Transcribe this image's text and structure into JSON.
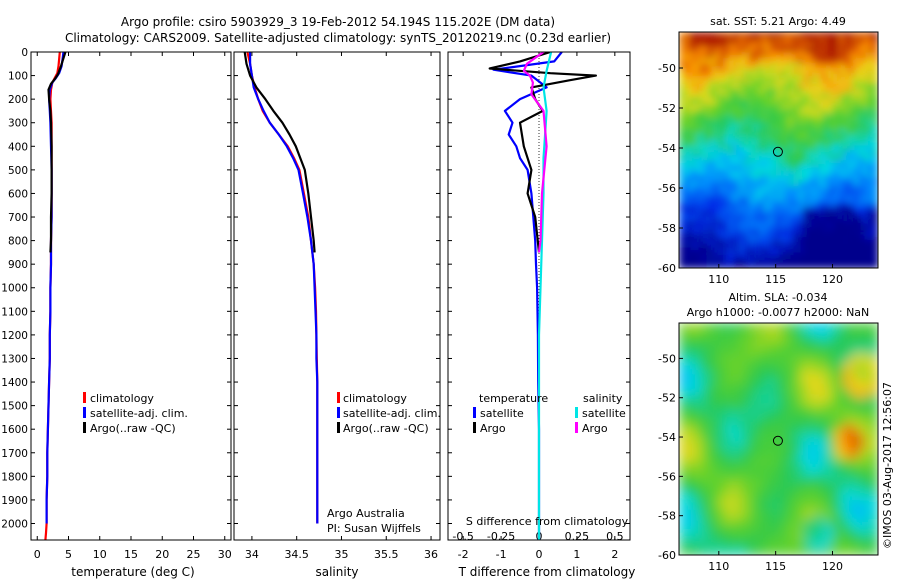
{
  "header": {
    "line1": "Argo profile: csiro 5903929_3 19-Feb-2012 54.194S 115.202E (DM data)",
    "line2": "Climatology: CARS2009. Satellite-adjusted climatology: synTS_20120219.nc (0.23d earlier)"
  },
  "credits": {
    "org": "Argo Australia",
    "pi": "PI: Susan Wijffels",
    "stamp": "©IMOS 03-Aug-2017 12:56:07"
  },
  "colors": {
    "climatology": "#ff0000",
    "satellite": "#0000ff",
    "argo": "#000000",
    "sal_satellite": "#00e5e5",
    "sal_argo": "#ff00ff"
  },
  "legend_profiles": [
    "climatology",
    "satellite-adj. clim.",
    "Argo(..raw -QC)"
  ],
  "legend_diff": {
    "temp_header": "temperature",
    "sal_header": "salinity",
    "temp_items": [
      "satellite",
      "Argo"
    ],
    "sal_items": [
      "satellite",
      "Argo"
    ]
  },
  "chart_data": [
    {
      "type": "line",
      "name": "temperature_profile",
      "xlabel": "temperature (deg C)",
      "xlim": [
        -1,
        31
      ],
      "ylim": [
        2070,
        0
      ],
      "xticks": [
        "0",
        "5",
        "10",
        "15",
        "20",
        "25",
        "30"
      ],
      "yticks": [
        "0",
        "100",
        "200",
        "300",
        "400",
        "500",
        "600",
        "700",
        "800",
        "900",
        "1000",
        "1100",
        "1200",
        "1300",
        "1400",
        "1500",
        "1600",
        "1700",
        "1800",
        "1900",
        "2000"
      ],
      "series": [
        {
          "name": "climatology",
          "color": "#ff0000",
          "x": [
            3.6,
            3.4,
            3.2,
            2.8,
            2.4,
            2.2,
            2.1,
            2.2,
            2.3,
            2.3,
            2.3,
            2.3,
            2.3,
            2.2,
            2.2,
            2.1,
            2.1,
            2.0,
            2.0,
            1.9,
            1.8,
            1.7,
            1.6,
            1.6,
            1.5,
            1.5,
            1.4,
            1.3
          ],
          "y": [
            0,
            60,
            90,
            110,
            130,
            160,
            200,
            250,
            300,
            400,
            500,
            600,
            700,
            800,
            900,
            1000,
            1100,
            1200,
            1300,
            1400,
            1500,
            1600,
            1700,
            1800,
            1900,
            2000,
            2040,
            2070
          ]
        },
        {
          "name": "satellite-adj. clim.",
          "color": "#0000ff",
          "x": [
            4.2,
            3.9,
            3.5,
            3.0,
            2.4,
            2.0,
            1.9,
            2.0,
            2.1,
            2.2,
            2.3,
            2.3,
            2.3,
            2.2,
            2.2,
            2.1,
            2.1,
            2.0,
            2.0,
            1.9,
            1.8,
            1.7,
            1.6,
            1.6,
            1.5,
            1.5
          ],
          "y": [
            0,
            60,
            90,
            110,
            130,
            160,
            200,
            250,
            300,
            400,
            500,
            600,
            700,
            800,
            900,
            1000,
            1100,
            1200,
            1300,
            1400,
            1500,
            1600,
            1700,
            1800,
            1900,
            2000
          ]
        },
        {
          "name": "Argo(..raw -QC)",
          "color": "#000000",
          "x": [
            4.5,
            3.8,
            3.3,
            2.8,
            2.2,
            1.8,
            1.9,
            2.1,
            2.2,
            2.3,
            2.3,
            2.3,
            2.2,
            2.2,
            2.1
          ],
          "y": [
            0,
            60,
            95,
            115,
            135,
            160,
            200,
            250,
            300,
            400,
            500,
            600,
            700,
            800,
            850
          ]
        }
      ]
    },
    {
      "type": "line",
      "name": "salinity_profile",
      "xlabel": "salinity",
      "xlim": [
        33.8,
        36.1
      ],
      "ylim": [
        2070,
        0
      ],
      "xticks": [
        "34",
        "34.5",
        "35",
        "35.5",
        "36"
      ],
      "series": [
        {
          "name": "climatology",
          "color": "#ff0000",
          "x": [
            33.95,
            33.98,
            34.0,
            34.03,
            34.07,
            34.12,
            34.2,
            34.3,
            34.4,
            34.47,
            34.53,
            34.58,
            34.63,
            34.66,
            34.69,
            34.705,
            34.715,
            34.72,
            34.725,
            34.73,
            34.73,
            34.73,
            34.73,
            34.73,
            34.73,
            34.73
          ],
          "y": [
            0,
            50,
            100,
            150,
            200,
            250,
            300,
            350,
            400,
            450,
            500,
            600,
            700,
            800,
            900,
            1000,
            1100,
            1200,
            1300,
            1400,
            1500,
            1600,
            1700,
            1800,
            1900,
            2000
          ]
        },
        {
          "name": "satellite-adj. clim.",
          "color": "#0000ff",
          "x": [
            33.98,
            33.98,
            34.0,
            34.02,
            34.07,
            34.13,
            34.2,
            34.3,
            34.39,
            34.46,
            34.52,
            34.57,
            34.62,
            34.66,
            34.69,
            34.7,
            34.71,
            34.72,
            34.72,
            34.73,
            34.73,
            34.73,
            34.73,
            34.73,
            34.73,
            34.73
          ],
          "y": [
            0,
            50,
            100,
            150,
            200,
            250,
            300,
            350,
            400,
            450,
            500,
            600,
            700,
            800,
            900,
            1000,
            1100,
            1200,
            1300,
            1400,
            1500,
            1600,
            1700,
            1800,
            1900,
            2000
          ]
        },
        {
          "name": "Argo(..raw -QC)",
          "color": "#000000",
          "x": [
            33.92,
            33.94,
            33.98,
            34.05,
            34.15,
            34.24,
            34.34,
            34.42,
            34.49,
            34.54,
            34.59,
            34.63,
            34.66,
            34.69,
            34.7
          ],
          "y": [
            0,
            50,
            100,
            150,
            200,
            250,
            300,
            350,
            400,
            450,
            500,
            600,
            700,
            800,
            850
          ]
        }
      ]
    },
    {
      "type": "line",
      "name": "difference_from_climatology",
      "xlabel": "T difference from climatology",
      "x2label": "S difference from climatology",
      "xlim": [
        -2.4,
        2.4
      ],
      "ylim": [
        2070,
        0
      ],
      "xticks": [
        "-2",
        "-1",
        "0",
        "1",
        "2"
      ],
      "x2ticks": [
        "-0.5",
        "-0.25",
        "0",
        "0.25",
        "0.5"
      ],
      "series": [
        {
          "name": "temperature satellite",
          "color": "#0000ff",
          "x": [
            0.6,
            0.4,
            -1.2,
            -0.2,
            0.2,
            -0.5,
            -0.9,
            -0.7,
            -0.8,
            -0.6,
            -0.5,
            -0.3,
            -0.2,
            -0.15,
            -0.1,
            -0.08,
            -0.05,
            -0.03,
            -0.02,
            0.0,
            0.0,
            0.0,
            0.0
          ],
          "y": [
            0,
            40,
            75,
            100,
            150,
            200,
            250,
            300,
            350,
            400,
            450,
            500,
            600,
            700,
            800,
            900,
            1000,
            1200,
            1400,
            1600,
            1800,
            2000,
            2070
          ]
        },
        {
          "name": "temperature Argo",
          "color": "#000000",
          "x": [
            0.3,
            -0.5,
            -1.3,
            0.3,
            1.5,
            0.8,
            -0.2,
            -0.1,
            0.1,
            -0.5,
            -0.4,
            -0.2,
            -0.3,
            -0.1,
            0.0
          ],
          "y": [
            0,
            40,
            70,
            90,
            100,
            120,
            150,
            200,
            250,
            300,
            400,
            500,
            600,
            700,
            850
          ]
        },
        {
          "name": "salinity satellite",
          "color": "#00e5e5",
          "x": [
            0.08,
            0.05,
            0.03,
            0.05,
            0.04,
            0.03,
            0.03,
            0.02,
            0.01,
            0.0,
            0.0,
            0.0,
            0.0
          ],
          "y": [
            0,
            80,
            150,
            250,
            350,
            450,
            600,
            800,
            1000,
            1200,
            1500,
            1800,
            2070
          ]
        },
        {
          "name": "salinity Argo",
          "color": "#ff00ff",
          "x": [
            0.03,
            -0.08,
            -0.1,
            -0.06,
            -0.04,
            -0.05,
            0.03,
            0.05,
            0.02,
            0.01,
            0.0
          ],
          "y": [
            0,
            50,
            80,
            100,
            130,
            180,
            250,
            400,
            600,
            800,
            850
          ]
        }
      ]
    },
    {
      "type": "heatmap",
      "name": "sst_map",
      "title": "sat. SST: 5.21  Argo: 4.49",
      "xlim": [
        106.5,
        124
      ],
      "ylim": [
        -60,
        -48.2
      ],
      "xticks": [
        "110",
        "115",
        "120"
      ],
      "yticks": [
        "-50",
        "-52",
        "-54",
        "-56",
        "-58",
        "-60"
      ],
      "marker": {
        "lon": 115.2,
        "lat": -54.19
      }
    },
    {
      "type": "heatmap",
      "name": "sla_map",
      "title": "Altim. SLA: -0.034",
      "subtitle": "Argo h1000: -0.0077 h2000: NaN",
      "xlim": [
        106.5,
        124
      ],
      "ylim": [
        -60,
        -48.2
      ],
      "xticks": [
        "110",
        "115",
        "120"
      ],
      "yticks": [
        "-50",
        "-52",
        "-54",
        "-56",
        "-58",
        "-60"
      ],
      "marker": {
        "lon": 115.2,
        "lat": -54.19
      }
    }
  ]
}
